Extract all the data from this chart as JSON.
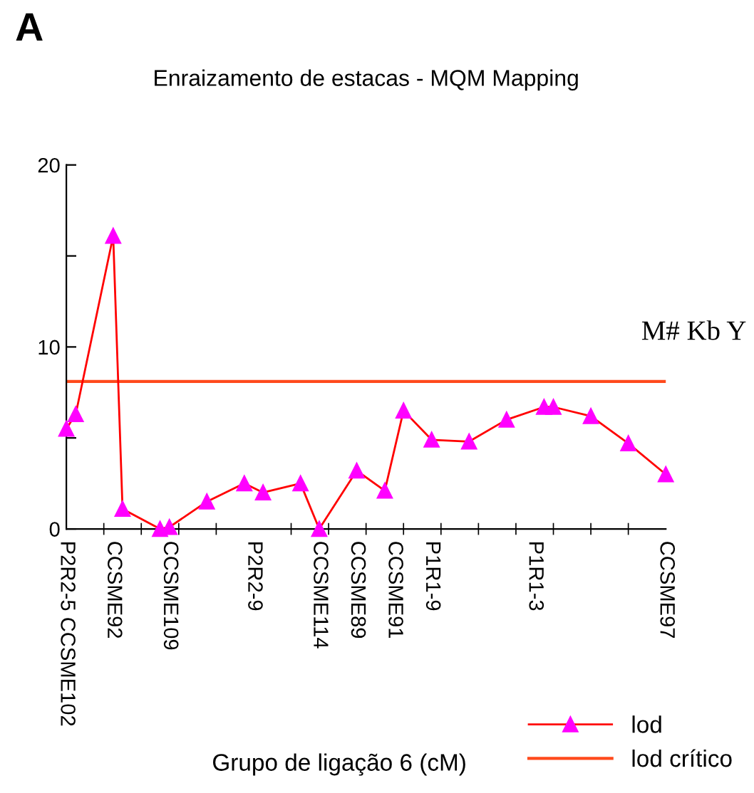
{
  "chart_data": {
    "type": "line",
    "title": "Enraizamento de estacas - MQM Mapping",
    "xlabel": "Grupo de ligação 6 (cM)",
    "annotations": [
      "A",
      "M# Kb Y"
    ],
    "categories": [
      "P2R2-5 CCSME102",
      null,
      null,
      null,
      null,
      "CCSME92",
      null,
      null,
      null,
      null,
      null,
      "CCSME109",
      null,
      null,
      null,
      null,
      null,
      null,
      null,
      null,
      "P2R2-9",
      null,
      null,
      null,
      null,
      null,
      null,
      "CCSME114",
      null,
      null,
      null,
      "CCSME89",
      null,
      null,
      null,
      "CCSME91",
      null,
      null,
      null,
      "P1R1-9",
      null,
      null,
      null,
      null,
      null,
      null,
      null,
      null,
      null,
      null,
      "P1R1-3",
      null,
      null,
      null,
      null,
      null,
      null,
      null,
      null,
      null,
      null,
      null,
      null,
      null,
      "CCSME97"
    ],
    "ylim": [
      0,
      20
    ],
    "yticks": [
      0,
      {
        "value": 5,
        "label": null
      },
      10,
      {
        "value": 15,
        "label": null
      },
      20
    ],
    "series": [
      {
        "name": "lod",
        "color": "#ff00ff",
        "values": [
          5.5,
          6.3,
          null,
          null,
          null,
          16.1,
          1.1,
          null,
          null,
          null,
          0,
          0.1,
          null,
          null,
          null,
          1.5,
          null,
          null,
          null,
          2.5,
          null,
          2.0,
          null,
          null,
          null,
          2.5,
          null,
          0,
          null,
          null,
          null,
          3.2,
          null,
          null,
          2.1,
          null,
          6.5,
          null,
          null,
          4.9,
          null,
          null,
          null,
          4.8,
          null,
          null,
          null,
          6.0,
          null,
          null,
          null,
          6.7,
          6.7,
          null,
          null,
          null,
          6.2,
          null,
          null,
          null,
          4.7,
          null,
          null,
          null,
          3.0
        ]
      }
    ],
    "ref_lines": [
      {
        "axis": "y",
        "value": 8.1,
        "label": "lod crítico",
        "color": "#ff4a1c"
      }
    ],
    "marker": "triangle",
    "line_style": "solid",
    "grid": false,
    "legend": "bottom right"
  }
}
